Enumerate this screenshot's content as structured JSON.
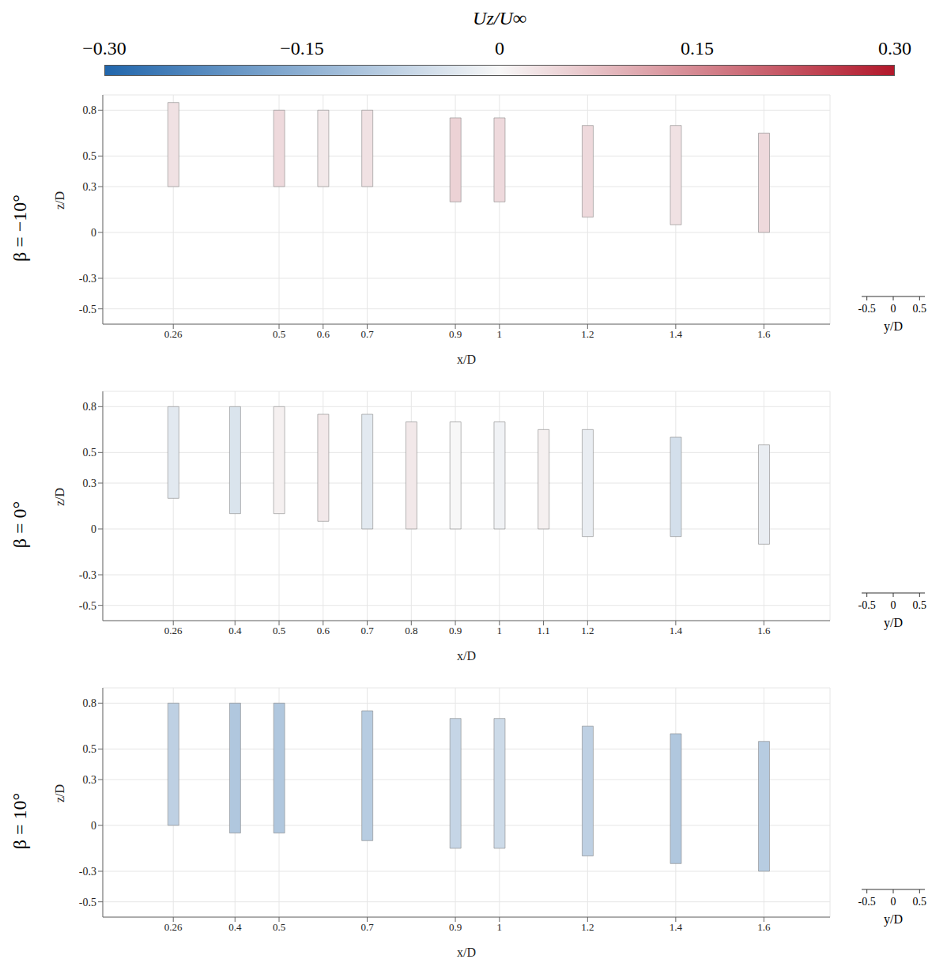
{
  "colorbar": {
    "label": "Uz/U∞",
    "range": [
      -0.3,
      0.3
    ],
    "ticks": [
      {
        "value": -0.3,
        "label": "−0.30"
      },
      {
        "value": -0.15,
        "label": "−0.15"
      },
      0,
      0.15,
      {
        "value": 0.3,
        "label": "0.30"
      }
    ]
  },
  "chart_data": [
    {
      "type": "bar",
      "title": "β = −10°",
      "x_label": "x/D",
      "y_label": "z/D",
      "xlim": [
        0.1,
        1.75
      ],
      "xticks": [
        0.26,
        0.5,
        0.6,
        0.7,
        0.9,
        1,
        1.2,
        1.4,
        1.6
      ],
      "ylim": [
        -0.6,
        0.9
      ],
      "yticks": [
        -0.5,
        -0.3,
        0,
        0.3,
        0.5,
        0.8
      ],
      "depth_axis": {
        "label": "y/D",
        "lim": [
          -0.6,
          0.6
        ],
        "ticks": [
          -0.5,
          0,
          0.5
        ]
      },
      "x": [
        0.26,
        0.5,
        0.6,
        0.7,
        0.9,
        1,
        1.2,
        1.4,
        1.6
      ],
      "z_bottom": [
        0.3,
        0.3,
        0.3,
        0.3,
        0.2,
        0.2,
        0.1,
        0.05,
        0.0
      ],
      "z_top": [
        0.85,
        0.8,
        0.8,
        0.8,
        0.75,
        0.75,
        0.7,
        0.7,
        0.65
      ],
      "values": [
        0.03,
        0.04,
        0.02,
        0.03,
        0.05,
        0.04,
        0.04,
        0.03,
        0.04
      ]
    },
    {
      "type": "bar",
      "title": "β = 0°",
      "x_label": "x/D",
      "y_label": "z/D",
      "xlim": [
        0.1,
        1.75
      ],
      "xticks": [
        0.26,
        0.4,
        0.5,
        0.6,
        0.7,
        0.8,
        0.9,
        1,
        1.1,
        1.2,
        1.4,
        1.6
      ],
      "ylim": [
        -0.6,
        0.9
      ],
      "yticks": [
        -0.5,
        -0.3,
        0,
        0.3,
        0.5,
        0.8
      ],
      "depth_axis": {
        "label": "y/D",
        "lim": [
          -0.6,
          0.6
        ],
        "ticks": [
          -0.5,
          0,
          0.5
        ]
      },
      "x": [
        0.26,
        0.4,
        0.5,
        0.6,
        0.7,
        0.8,
        0.9,
        1,
        1.1,
        1.2,
        1.4,
        1.6
      ],
      "z_bottom": [
        0.2,
        0.1,
        0.1,
        0.05,
        0.0,
        0.0,
        0.0,
        0.0,
        0.0,
        -0.05,
        -0.05,
        -0.1
      ],
      "z_top": [
        0.8,
        0.8,
        0.8,
        0.75,
        0.75,
        0.7,
        0.7,
        0.7,
        0.65,
        0.65,
        0.6,
        0.55
      ],
      "values": [
        -0.03,
        -0.04,
        0.01,
        0.02,
        -0.03,
        0.02,
        0.0,
        -0.01,
        0.01,
        -0.02,
        -0.05,
        -0.02
      ]
    },
    {
      "type": "bar",
      "title": "β = 10°",
      "x_label": "x/D",
      "y_label": "z/D",
      "xlim": [
        0.1,
        1.75
      ],
      "xticks": [
        0.26,
        0.4,
        0.5,
        0.7,
        0.9,
        1,
        1.2,
        1.4,
        1.6
      ],
      "ylim": [
        -0.6,
        0.9
      ],
      "yticks": [
        -0.5,
        -0.3,
        0,
        0.3,
        0.5,
        0.8
      ],
      "depth_axis": {
        "label": "y/D",
        "lim": [
          -0.6,
          0.6
        ],
        "ticks": [
          -0.5,
          0,
          0.5
        ]
      },
      "x": [
        0.26,
        0.4,
        0.5,
        0.7,
        0.9,
        1,
        1.2,
        1.4,
        1.6
      ],
      "z_bottom": [
        0.0,
        -0.05,
        -0.05,
        -0.1,
        -0.15,
        -0.15,
        -0.2,
        -0.25,
        -0.3
      ],
      "z_top": [
        0.8,
        0.8,
        0.8,
        0.75,
        0.7,
        0.7,
        0.65,
        0.6,
        0.55
      ],
      "values": [
        -0.08,
        -0.1,
        -0.1,
        -0.09,
        -0.07,
        -0.06,
        -0.08,
        -0.1,
        -0.09
      ]
    }
  ]
}
